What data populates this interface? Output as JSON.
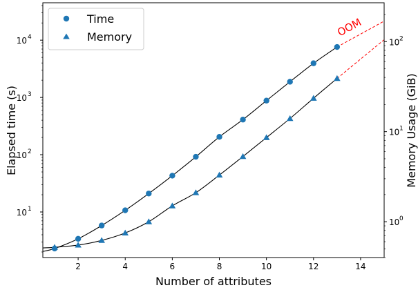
{
  "chart_data": {
    "type": "scatter",
    "xlabel": "Number of attributes",
    "ylabel": "Elapsed time (s)",
    "y2label": "Memory Usage (GiB)",
    "xlim": [
      0.5,
      15
    ],
    "ylim": [
      1.6,
      45000
    ],
    "y2lim": [
      0.4,
      270
    ],
    "yscale": "log",
    "y2scale": "log",
    "x_ticks": [
      "2",
      "4",
      "6",
      "8",
      "10",
      "12",
      "14"
    ],
    "y_ticks": [
      {
        "base": "10",
        "exp": "1",
        "value": 10
      },
      {
        "base": "10",
        "exp": "2",
        "value": 100
      },
      {
        "base": "10",
        "exp": "3",
        "value": 1000
      },
      {
        "base": "10",
        "exp": "4",
        "value": 10000
      }
    ],
    "y2_ticks": [
      {
        "base": "10",
        "exp": "0",
        "value": 1
      },
      {
        "base": "10",
        "exp": "1",
        "value": 10
      },
      {
        "base": "10",
        "exp": "2",
        "value": 100
      }
    ],
    "series": [
      {
        "name": "Time",
        "axis": "left",
        "marker": "circle",
        "color": "#1f77b4",
        "x": [
          1,
          2,
          3,
          4,
          5,
          6,
          7,
          8,
          9,
          10,
          11,
          12,
          13
        ],
        "values": [
          2.3,
          3.4,
          5.8,
          10.7,
          21,
          43,
          92,
          205,
          410,
          880,
          1880,
          3950,
          7600
        ]
      },
      {
        "name": "Memory",
        "axis": "right",
        "marker": "triangle",
        "color": "#1f77b4",
        "x": [
          1,
          2,
          3,
          4,
          5,
          6,
          7,
          8,
          9,
          10,
          11,
          12,
          13
        ],
        "values": [
          0.52,
          0.55,
          0.62,
          0.75,
          1.0,
          1.5,
          2.1,
          3.3,
          5.3,
          8.6,
          14,
          23.5,
          39
        ]
      }
    ],
    "extrapolation": {
      "label": "OOM",
      "color": "#ff0000",
      "time_end": {
        "x": 15,
        "value": 21500
      },
      "memory_end": {
        "x": 15,
        "value": 105
      }
    },
    "legend": "top-left",
    "grid": false
  }
}
